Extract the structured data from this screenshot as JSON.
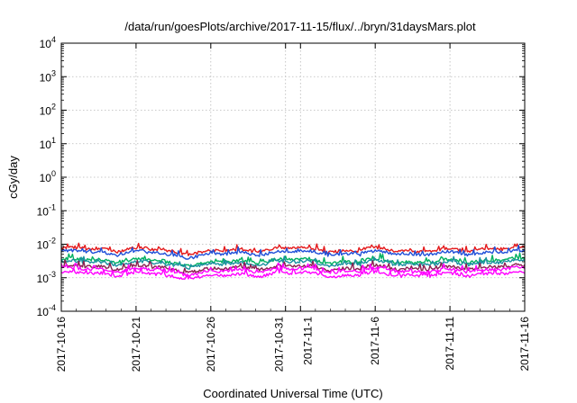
{
  "chart_data": {
    "type": "line",
    "title": "/data/run/goesPlots/archive/2017-11-15/flux/../bryn/31daysMars.plot",
    "xlabel": "Coordinated Universal Time (UTC)",
    "ylabel": "cGy/day",
    "yscale": "log",
    "ylim": [
      0.0001,
      10000
    ],
    "y_ticks": [
      {
        "base": "10",
        "exp": "-4",
        "value": 0.0001
      },
      {
        "base": "10",
        "exp": "-3",
        "value": 0.001
      },
      {
        "base": "10",
        "exp": "-2",
        "value": 0.01
      },
      {
        "base": "10",
        "exp": "-1",
        "value": 0.1
      },
      {
        "base": "10",
        "exp": "0",
        "value": 1
      },
      {
        "base": "10",
        "exp": "1",
        "value": 10
      },
      {
        "base": "10",
        "exp": "2",
        "value": 100
      },
      {
        "base": "10",
        "exp": "3",
        "value": 1000
      },
      {
        "base": "10",
        "exp": "4",
        "value": 10000
      }
    ],
    "xlim": [
      "2017-10-16",
      "2017-11-16"
    ],
    "x_ticks": [
      {
        "label": "2017-10-16",
        "day": 0
      },
      {
        "label": "2017-10-21",
        "day": 5
      },
      {
        "label": "2017-10-26",
        "day": 10
      },
      {
        "label": "2017-10-31",
        "day": 15
      },
      {
        "label": "2017-11-1",
        "day": 16
      },
      {
        "label": "2017-11-6",
        "day": 21
      },
      {
        "label": "2017-11-11",
        "day": 26
      },
      {
        "label": "2017-11-16",
        "day": 31
      }
    ],
    "grid": true,
    "series": [
      {
        "color": "#e41a1c",
        "baseline": 0.0065
      },
      {
        "color": "#1f4fd8",
        "baseline": 0.0052
      },
      {
        "color": "#00b060",
        "baseline": 0.003
      },
      {
        "color": "#1a8fa0",
        "baseline": 0.0026
      },
      {
        "color": "#8b2050",
        "baseline": 0.0019
      },
      {
        "color": "#ff00ff",
        "baseline": 0.0016
      },
      {
        "color": "#ff00ff",
        "baseline": 0.0012
      }
    ]
  }
}
